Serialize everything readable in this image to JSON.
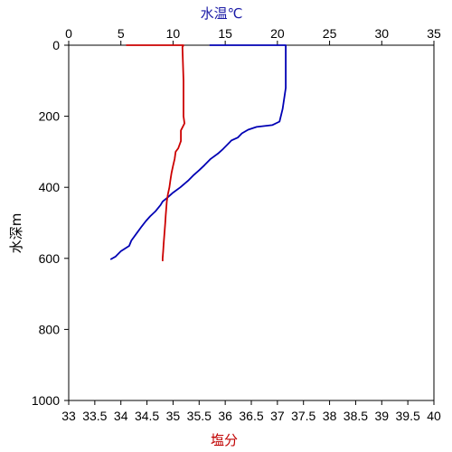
{
  "chart_data": {
    "type": "line",
    "top_axis": {
      "label": "水温℃",
      "label_color": "#1a1aa6",
      "range": [
        0,
        35
      ],
      "ticks": [
        "0",
        "5",
        "10",
        "15",
        "20",
        "25",
        "30",
        "35"
      ]
    },
    "bottom_axis": {
      "label": "塩分",
      "label_color": "#c00000",
      "range": [
        33,
        40
      ],
      "ticks": [
        "33",
        "33.5",
        "34",
        "34.5",
        "35",
        "35.5",
        "36",
        "36.5",
        "37",
        "37.5",
        "38",
        "38.5",
        "39",
        "39.5",
        "40"
      ]
    },
    "y_axis": {
      "label": "水深m",
      "range": [
        0,
        1000
      ],
      "inverted": true,
      "ticks": [
        "0",
        "200",
        "400",
        "600",
        "800",
        "1000"
      ]
    },
    "grid": false,
    "series": [
      {
        "axis": "top",
        "color": "#0000b4",
        "points": [
          [
            13.5,
            0
          ],
          [
            20.8,
            0
          ],
          [
            20.8,
            120
          ],
          [
            20.5,
            180
          ],
          [
            20.2,
            215
          ],
          [
            19.5,
            225
          ],
          [
            18.0,
            230
          ],
          [
            17.2,
            238
          ],
          [
            16.6,
            248
          ],
          [
            16.2,
            260
          ],
          [
            15.6,
            268
          ],
          [
            15.2,
            280
          ],
          [
            14.8,
            292
          ],
          [
            14.3,
            305
          ],
          [
            13.6,
            320
          ],
          [
            13.0,
            338
          ],
          [
            12.5,
            352
          ],
          [
            12.0,
            365
          ],
          [
            11.5,
            380
          ],
          [
            10.7,
            400
          ],
          [
            10.0,
            415
          ],
          [
            9.5,
            428
          ],
          [
            9.0,
            440
          ],
          [
            8.8,
            450
          ],
          [
            8.3,
            468
          ],
          [
            7.8,
            482
          ],
          [
            7.4,
            495
          ],
          [
            7.0,
            510
          ],
          [
            6.5,
            530
          ],
          [
            6.0,
            550
          ],
          [
            5.8,
            565
          ],
          [
            5.0,
            580
          ],
          [
            4.5,
            595
          ],
          [
            4.0,
            603
          ]
        ]
      },
      {
        "axis": "bottom",
        "color": "#cc0000",
        "points": [
          [
            34.1,
            0
          ],
          [
            35.2,
            0
          ],
          [
            35.18,
            5
          ],
          [
            35.2,
            100
          ],
          [
            35.2,
            200
          ],
          [
            35.22,
            220
          ],
          [
            35.15,
            240
          ],
          [
            35.15,
            270
          ],
          [
            35.1,
            290
          ],
          [
            35.05,
            300
          ],
          [
            35.03,
            320
          ],
          [
            35.0,
            340
          ],
          [
            34.97,
            360
          ],
          [
            34.95,
            380
          ],
          [
            34.93,
            400
          ],
          [
            34.9,
            420
          ],
          [
            34.88,
            440
          ],
          [
            34.87,
            460
          ],
          [
            34.86,
            480
          ],
          [
            34.85,
            500
          ],
          [
            34.84,
            520
          ],
          [
            34.83,
            540
          ],
          [
            34.82,
            560
          ],
          [
            34.81,
            580
          ],
          [
            34.8,
            600
          ],
          [
            34.8,
            608
          ]
        ]
      }
    ]
  }
}
